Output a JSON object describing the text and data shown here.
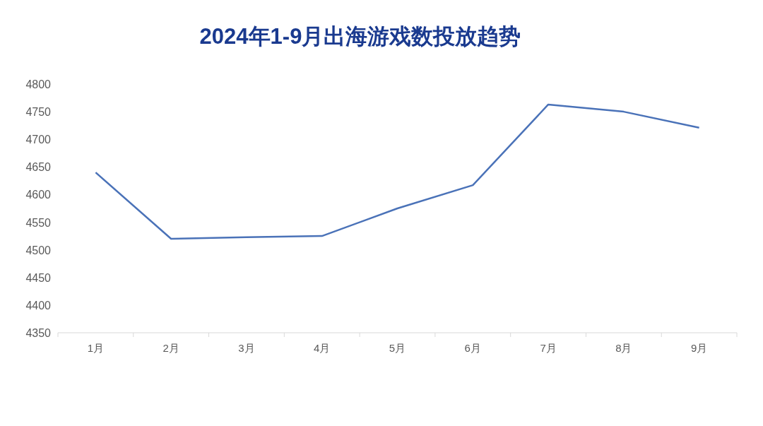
{
  "chart_data": {
    "type": "line",
    "title": "2024年1-9月出海游戏数投放趋势",
    "categories": [
      "1月",
      "2月",
      "3月",
      "4月",
      "5月",
      "6月",
      "7月",
      "8月",
      "9月"
    ],
    "series": [
      {
        "color": "#4a72b8",
        "values": [
          4640,
          4520,
          4523,
          4525,
          4575,
          4617,
          4763,
          4750,
          4721
        ]
      }
    ],
    "ylim": [
      4350,
      4800
    ],
    "yticks": [
      4350,
      4400,
      4450,
      4500,
      4550,
      4600,
      4650,
      4700,
      4750,
      4800
    ],
    "grid": false,
    "marker": "none",
    "line_style": "solid"
  }
}
